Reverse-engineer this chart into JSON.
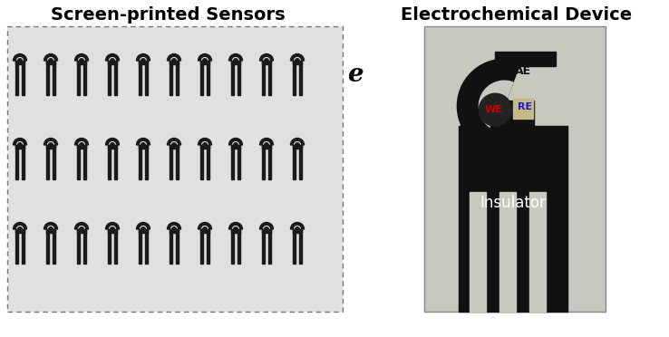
{
  "title_left": "Screen-printed Sensors",
  "title_right": "Electrochemical Device",
  "label_e": "e",
  "label_insulator": "Insulator",
  "label_AE": "AE",
  "label_WE": "WE",
  "label_RE": "RE",
  "bg_color": "#ffffff",
  "title_fontsize": 14,
  "label_e_fontsize": 20,
  "insulator_fontsize": 12,
  "fig_width": 7.38,
  "fig_height": 3.72,
  "sensor_bg": "#e8e8e8",
  "sensor_color": "#1a1a1a",
  "device_bg": "#d0ccc0",
  "device_black": "#111111",
  "WE_color": "#cc0000",
  "RE_color": "#1a1acc",
  "AE_color": "#111111",
  "insulator_text_color": "#ffffff",
  "n_sensors_per_row": 10,
  "n_rows": 3
}
